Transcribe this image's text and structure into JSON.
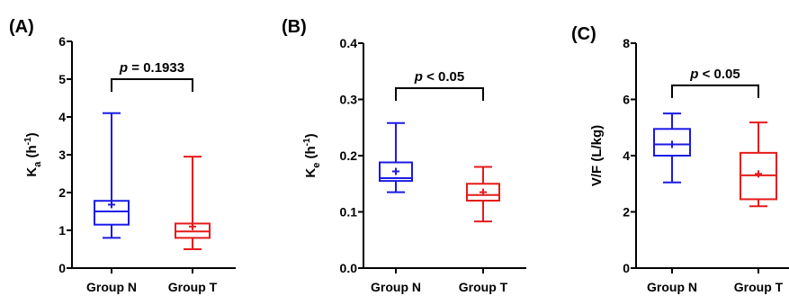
{
  "colors": {
    "group_n": "#1a1ae6",
    "group_t": "#e61a1a",
    "axis": "#000000"
  },
  "chart_data": [
    {
      "type": "box",
      "panel_label": "(A)",
      "ylabel": {
        "main": "K",
        "sub": "a",
        "pre": " (h",
        "sup": "-1",
        "post": ")"
      },
      "ylim": [
        0,
        6
      ],
      "yticks": [
        0,
        1,
        2,
        3,
        4,
        5,
        6
      ],
      "yticklabels": [
        "0",
        "1",
        "2",
        "3",
        "4",
        "5",
        "6"
      ],
      "categories": [
        "Group N",
        "Group T"
      ],
      "boxes": [
        {
          "name": "Group N",
          "min": 0.8,
          "q1": 1.15,
          "median": 1.5,
          "q3": 1.78,
          "max": 4.1,
          "mean": 1.68
        },
        {
          "name": "Group T",
          "min": 0.5,
          "q1": 0.8,
          "median": 0.97,
          "q3": 1.18,
          "max": 2.95,
          "mean": 1.1
        }
      ],
      "pvalue": {
        "italic": "p",
        "rest": " = 0.1933",
        "y": 5.0
      }
    },
    {
      "type": "box",
      "panel_label": "(B)",
      "ylabel": {
        "main": "K",
        "sub": "e",
        "pre": " (h",
        "sup": "-1",
        "post": ")"
      },
      "ylim": [
        0,
        0.4
      ],
      "yticks": [
        0,
        0.1,
        0.2,
        0.3,
        0.4
      ],
      "yticklabels": [
        "0.0",
        "0.1",
        "0.2",
        "0.3",
        "0.4"
      ],
      "categories": [
        "Group N",
        "Group T"
      ],
      "boxes": [
        {
          "name": "Group N",
          "min": 0.135,
          "q1": 0.155,
          "median": 0.16,
          "q3": 0.188,
          "max": 0.258,
          "mean": 0.172
        },
        {
          "name": "Group T",
          "min": 0.083,
          "q1": 0.12,
          "median": 0.13,
          "q3": 0.15,
          "max": 0.18,
          "mean": 0.135
        }
      ],
      "pvalue": {
        "italic": "p",
        "rest": " < 0.05",
        "y": 0.32
      }
    },
    {
      "type": "box",
      "panel_label": "(C)",
      "ylabel": {
        "main": "V/F (L/kg)",
        "sub": "",
        "pre": "",
        "sup": "",
        "post": ""
      },
      "ylim": [
        0,
        8
      ],
      "yticks": [
        0,
        2,
        4,
        6,
        8
      ],
      "yticklabels": [
        "0",
        "2",
        "4",
        "6",
        "8"
      ],
      "categories": [
        "Group N",
        "Group T"
      ],
      "boxes": [
        {
          "name": "Group N",
          "min": 3.05,
          "q1": 4.0,
          "median": 4.4,
          "q3": 4.95,
          "max": 5.5,
          "mean": 4.4
        },
        {
          "name": "Group T",
          "min": 2.2,
          "q1": 2.45,
          "median": 3.3,
          "q3": 4.1,
          "max": 5.18,
          "mean": 3.35
        }
      ],
      "pvalue": {
        "italic": "p",
        "rest": " < 0.05",
        "y": 6.5
      }
    }
  ]
}
